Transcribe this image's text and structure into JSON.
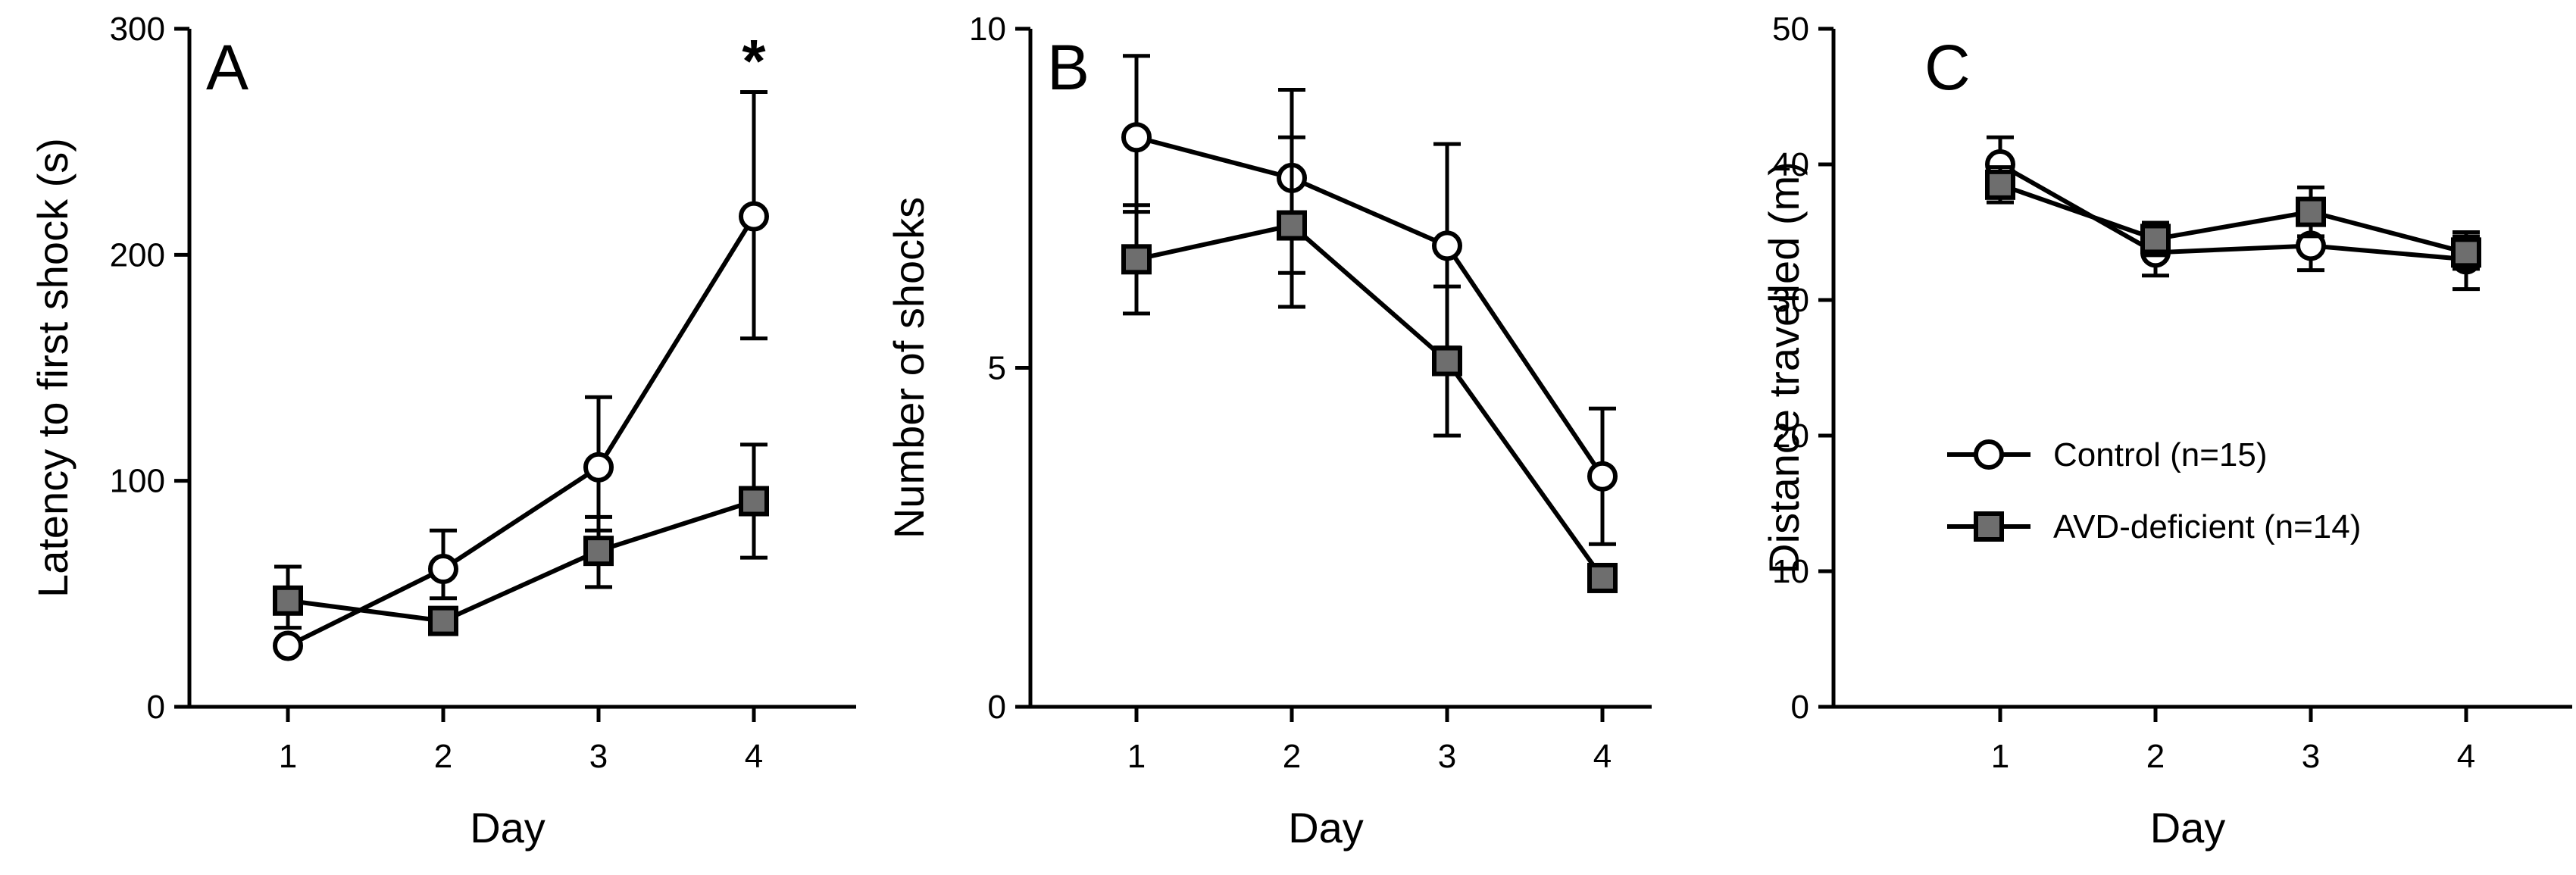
{
  "colors": {
    "control_fill": "#ffffff",
    "avd_fill": "#6e6e6e",
    "line": "#000000"
  },
  "legend": {
    "items": [
      {
        "label": "Control (n=15)",
        "marker": "circle-open"
      },
      {
        "label": "AVD-deficient  (n=14)",
        "marker": "square-gray"
      }
    ],
    "placement": "panel C, lower left"
  },
  "chart_data": [
    {
      "type": "line",
      "panel": "A",
      "xlabel": "Day",
      "ylabel": "Latency to first shock (s)",
      "ylim": [
        0,
        300
      ],
      "yticks": [
        0,
        100,
        200,
        300
      ],
      "categories": [
        "1",
        "2",
        "3",
        "4"
      ],
      "annotations": [
        {
          "text": "*",
          "category": "4"
        }
      ],
      "series": [
        {
          "name": "Control (n=15)",
          "marker": "circle",
          "values": [
            27,
            61,
            106,
            217
          ],
          "err_low": [
            27,
            48,
            78,
            163
          ],
          "err_high": [
            27,
            78,
            137,
            272
          ]
        },
        {
          "name": "AVD-deficient  (n=14)",
          "marker": "square",
          "values": [
            47,
            38,
            69,
            91
          ],
          "err_low": [
            35,
            38,
            53,
            66
          ],
          "err_high": [
            62,
            38,
            84,
            116
          ]
        }
      ]
    },
    {
      "type": "line",
      "panel": "B",
      "xlabel": "Day",
      "ylabel": "Number of shocks",
      "ylim": [
        0,
        10
      ],
      "yticks": [
        0,
        5,
        10
      ],
      "categories": [
        "1",
        "2",
        "3",
        "4"
      ],
      "series": [
        {
          "name": "Control (n=15)",
          "marker": "circle",
          "values": [
            8.4,
            7.8,
            6.8,
            3.4
          ],
          "err_low": [
            7.3,
            6.4,
            5.3,
            2.4
          ],
          "err_high": [
            9.6,
            9.1,
            8.3,
            4.4
          ]
        },
        {
          "name": "AVD-deficient  (n=14)",
          "marker": "square",
          "values": [
            6.6,
            7.1,
            5.1,
            1.9
          ],
          "err_low": [
            5.8,
            5.9,
            4.0,
            1.9
          ],
          "err_high": [
            7.4,
            8.4,
            6.2,
            1.9
          ]
        }
      ]
    },
    {
      "type": "line",
      "panel": "C",
      "xlabel": "Day",
      "ylabel": "Distance travelled (m)",
      "ylim": [
        0,
        50
      ],
      "yticks": [
        0,
        10,
        20,
        30,
        40,
        50
      ],
      "categories": [
        "1",
        "2",
        "3",
        "4"
      ],
      "series": [
        {
          "name": "Control (n=15)",
          "marker": "circle",
          "values": [
            40,
            33.5,
            34,
            33
          ],
          "err_low": [
            38,
            31.8,
            32.2,
            30.8
          ],
          "err_high": [
            42,
            35.2,
            35.8,
            35
          ]
        },
        {
          "name": "AVD-deficient  (n=14)",
          "marker": "square",
          "values": [
            38.5,
            34.5,
            36.5,
            33.5
          ],
          "err_low": [
            37.2,
            33.3,
            34.7,
            32.3
          ],
          "err_high": [
            39.8,
            35.7,
            38.3,
            34.7
          ]
        }
      ]
    }
  ]
}
